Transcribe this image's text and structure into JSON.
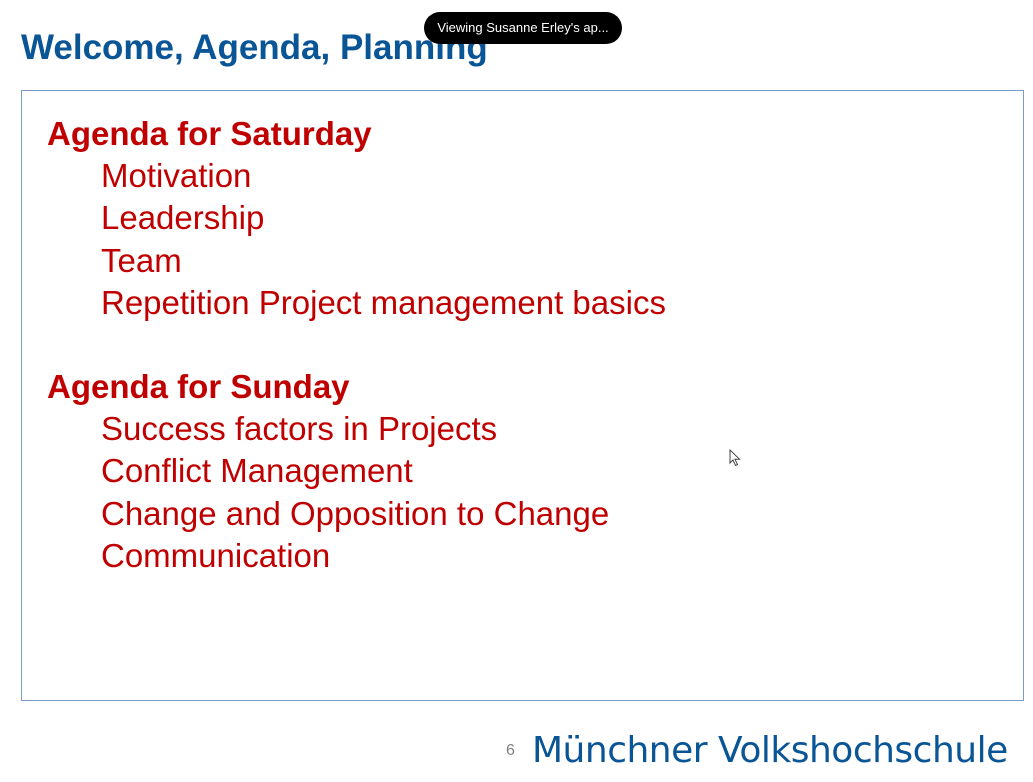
{
  "toast": {
    "text": "Viewing Susanne Erley's ap..."
  },
  "slide": {
    "title": "Welcome, Agenda, Planning",
    "saturday": {
      "heading": "Agenda for Saturday",
      "items": [
        "Motivation",
        "Leadership",
        "Team",
        "Repetition Project management basics"
      ]
    },
    "sunday": {
      "heading": "Agenda for Sunday",
      "items": [
        "Success factors in Projects",
        "Conflict Management",
        "Change and Opposition to Change",
        "Communication"
      ]
    },
    "page_number": "6",
    "logo_text": "Münchner Volkshochschule"
  },
  "colors": {
    "title": "#0a5596",
    "agenda_text": "#c00000",
    "box_border": "#7a9cc4",
    "toast_bg": "#000000"
  },
  "icons": {
    "cursor": "mouse-pointer-icon"
  }
}
